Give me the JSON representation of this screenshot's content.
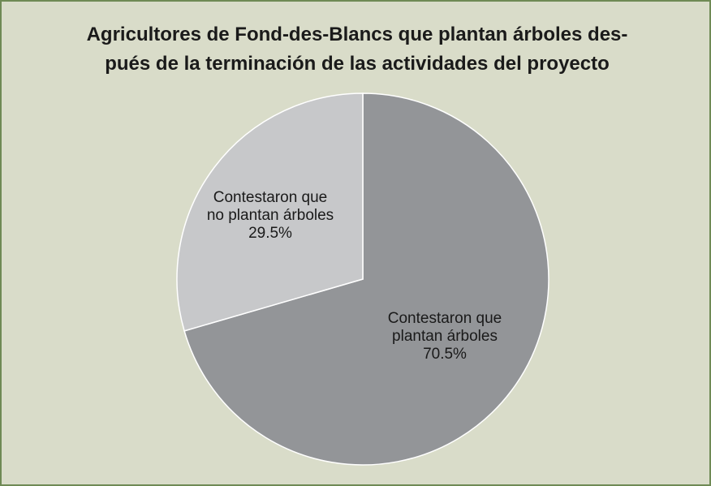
{
  "chart_data": {
    "type": "pie",
    "title": [
      "Agricultores de Fond-des-Blancs que plantan árboles des-",
      "pués de la terminación de las actividades del proyecto"
    ],
    "categories": [
      "Contestaron que plantan árboles",
      "Contestaron que no plantan árboles"
    ],
    "values": [
      70.5,
      29.5
    ],
    "value_labels": [
      "70.5%",
      "29.5%"
    ],
    "colors": [
      "#939598",
      "#c7c8ca"
    ]
  }
}
